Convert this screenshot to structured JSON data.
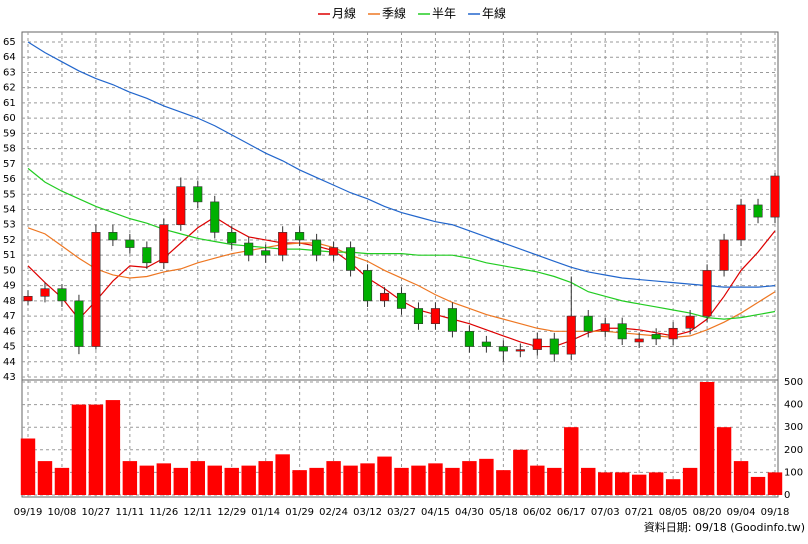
{
  "chart_data": {
    "type": "candlestick",
    "categories": [
      "09/19",
      null,
      "10/08",
      null,
      "10/27",
      null,
      "11/11",
      null,
      "11/26",
      null,
      "12/11",
      null,
      "12/29",
      null,
      "01/14",
      null,
      "01/29",
      null,
      "02/24",
      null,
      "03/12",
      null,
      "03/27",
      null,
      "04/15",
      null,
      "04/30",
      null,
      "05/18",
      null,
      "06/02",
      null,
      "06/17",
      null,
      "07/03",
      null,
      "07/21",
      null,
      "08/05",
      null,
      "08/20",
      null,
      "09/04",
      null,
      "09/18"
    ],
    "open": [
      48.0,
      48.3,
      48.8,
      48.0,
      45.0,
      52.5,
      52.0,
      51.5,
      50.5,
      53.0,
      55.5,
      54.5,
      52.5,
      51.8,
      51.3,
      51.0,
      52.5,
      52.0,
      51.0,
      51.5,
      50.0,
      48.0,
      48.5,
      47.5,
      46.5,
      47.5,
      46.0,
      45.3,
      45.0,
      44.7,
      44.8,
      45.5,
      44.5,
      47.0,
      46.0,
      46.5,
      45.3,
      45.8,
      45.5,
      46.2,
      47.0,
      50.0,
      52.0,
      54.3,
      53.5
    ],
    "high": [
      48.7,
      49.2,
      49.1,
      48.4,
      53.0,
      53.0,
      52.4,
      51.9,
      53.4,
      56.1,
      55.9,
      54.9,
      52.9,
      52.2,
      51.7,
      52.9,
      52.9,
      52.4,
      51.9,
      51.9,
      50.4,
      48.9,
      48.9,
      47.9,
      47.9,
      47.9,
      46.4,
      45.7,
      45.4,
      45.2,
      45.9,
      45.9,
      49.6,
      47.4,
      46.9,
      46.9,
      45.9,
      46.2,
      46.6,
      47.4,
      50.4,
      52.4,
      54.7,
      54.7,
      56.4
    ],
    "low": [
      47.7,
      47.9,
      47.6,
      44.5,
      44.8,
      51.6,
      51.1,
      50.1,
      50.1,
      52.6,
      54.1,
      52.1,
      51.4,
      50.6,
      50.5,
      50.6,
      51.6,
      50.6,
      50.6,
      49.6,
      47.6,
      47.6,
      47.1,
      46.1,
      46.1,
      45.6,
      44.6,
      44.6,
      44.0,
      44.3,
      44.4,
      44.0,
      44.1,
      45.6,
      45.6,
      45.1,
      44.9,
      45.1,
      45.1,
      45.8,
      46.6,
      49.6,
      51.6,
      53.1,
      53.1
    ],
    "close": [
      48.3,
      48.8,
      48.0,
      45.0,
      52.5,
      52.0,
      51.5,
      50.5,
      53.0,
      55.5,
      54.5,
      52.5,
      51.8,
      51.0,
      51.0,
      52.5,
      52.0,
      51.0,
      51.5,
      50.0,
      48.0,
      48.5,
      47.5,
      46.5,
      47.5,
      46.0,
      45.0,
      45.0,
      44.7,
      44.8,
      45.5,
      44.5,
      47.0,
      46.0,
      46.5,
      45.5,
      45.5,
      45.5,
      46.2,
      47.0,
      50.0,
      52.0,
      54.3,
      53.5,
      56.2
    ],
    "up_color": "#ff0000",
    "down_color": "#00b000",
    "series": [
      {
        "name": "月線",
        "color": "#dd0000",
        "values": [
          50.3,
          49.2,
          48.2,
          46.8,
          48,
          49.3,
          50.3,
          50.2,
          50.8,
          51.8,
          52.8,
          53.5,
          52.8,
          52.2,
          52,
          51.8,
          51.8,
          51.6,
          51.3,
          50.5,
          49.5,
          48.8,
          48,
          47.4,
          47.1,
          46.8,
          46.5,
          46.1,
          45.7,
          45.3,
          45,
          45,
          45.4,
          45.9,
          46.2,
          46.2,
          46.1,
          45.9,
          45.7,
          46,
          46.8,
          48.3,
          50,
          51.2,
          52.6
        ]
      },
      {
        "name": "季線",
        "color": "#ee7722",
        "values": [
          52.8,
          52.4,
          51.6,
          50.8,
          50.1,
          49.7,
          49.5,
          49.6,
          49.9,
          50.1,
          50.5,
          50.8,
          51.1,
          51.3,
          51.5,
          51.7,
          51.8,
          51.8,
          51.5,
          51,
          50.6,
          50,
          49.5,
          49,
          48.4,
          47.9,
          47.5,
          47.1,
          46.8,
          46.5,
          46.2,
          46,
          46,
          46,
          46,
          45.9,
          45.8,
          45.7,
          45.6,
          45.7,
          46.1,
          46.6,
          47.2,
          47.9,
          48.6
        ]
      },
      {
        "name": "半年",
        "color": "#22cc22",
        "values": [
          56.7,
          55.8,
          55.2,
          54.7,
          54.2,
          53.8,
          53.4,
          53.1,
          52.7,
          52.4,
          52.1,
          51.9,
          51.7,
          51.6,
          51.5,
          51.4,
          51.4,
          51.3,
          51.2,
          51.2,
          51.1,
          51.1,
          51.1,
          51,
          51,
          51,
          50.8,
          50.5,
          50.3,
          50.1,
          49.9,
          49.6,
          49.2,
          48.6,
          48.3,
          48,
          47.8,
          47.6,
          47.4,
          47.2,
          46.9,
          46.8,
          46.9,
          47.1,
          47.3
        ]
      },
      {
        "name": "年線",
        "color": "#2266cc",
        "values": [
          65,
          64.3,
          63.7,
          63.1,
          62.6,
          62.2,
          61.7,
          61.3,
          60.8,
          60.4,
          60,
          59.5,
          58.9,
          58.3,
          57.7,
          57.2,
          56.6,
          56.1,
          55.6,
          55.1,
          54.7,
          54.2,
          53.8,
          53.5,
          53.2,
          53,
          52.6,
          52.2,
          51.8,
          51.4,
          51,
          50.6,
          50.2,
          49.9,
          49.7,
          49.5,
          49.4,
          49.3,
          49.2,
          49.1,
          49,
          48.9,
          48.9,
          48.9,
          49
        ]
      }
    ],
    "ylim": [
      43,
      65
    ],
    "yticks": [
      43,
      44,
      45,
      46,
      47,
      48,
      49,
      50,
      51,
      52,
      53,
      54,
      55,
      56,
      57,
      58,
      59,
      60,
      61,
      62,
      63,
      64,
      65
    ],
    "volume": {
      "color": "#ff0000",
      "values": [
        250,
        150,
        120,
        400,
        400,
        420,
        150,
        130,
        140,
        120,
        150,
        130,
        120,
        130,
        150,
        180,
        110,
        120,
        150,
        130,
        140,
        170,
        120,
        130,
        140,
        120,
        150,
        160,
        110,
        200,
        130,
        120,
        300,
        120,
        100,
        100,
        90,
        100,
        70,
        120,
        500,
        300,
        150,
        80,
        100
      ],
      "ylim": [
        0,
        500
      ],
      "yticks": [
        0,
        100,
        200,
        300,
        400,
        500
      ]
    },
    "grid": true,
    "note": "資料日期: 09/18 (Goodinfo.tw)"
  }
}
